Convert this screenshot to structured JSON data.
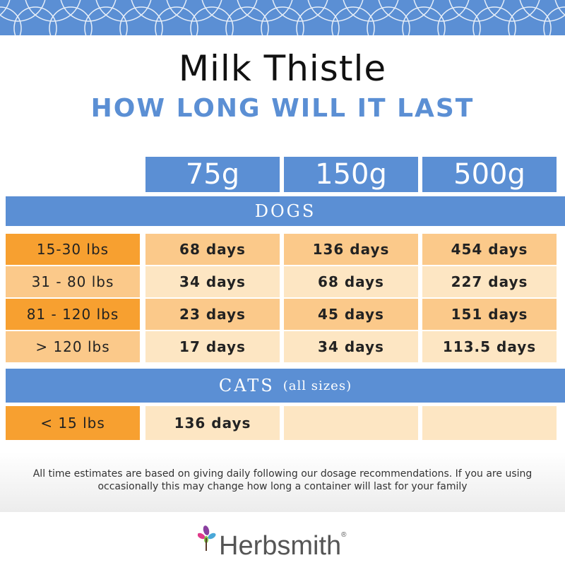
{
  "product_title": "Milk Thistle",
  "subtitle": "HOW LONG WILL IT LAST",
  "columns": [
    "75g",
    "150g",
    "500g"
  ],
  "dogs": {
    "heading": "DOGS",
    "rows": [
      {
        "label": "15-30 lbs",
        "values": [
          "68 days",
          "136 days",
          "454 days"
        ]
      },
      {
        "label": "31 - 80 lbs",
        "values": [
          "34 days",
          "68 days",
          "227 days"
        ]
      },
      {
        "label": "81 - 120 lbs",
        "values": [
          "23 days",
          "45 days",
          "151 days"
        ]
      },
      {
        "label": "> 120 lbs",
        "values": [
          "17 days",
          "34 days",
          "113.5 days"
        ]
      }
    ]
  },
  "cats": {
    "heading": "CATS",
    "note": "(all sizes)",
    "rows": [
      {
        "label": "< 15 lbs",
        "values": [
          "136 days",
          "",
          ""
        ]
      }
    ]
  },
  "disclaimer": "All time estimates are based on giving daily following our dosage recommendations. If you are using occasionally this may change how long a container will last for your family",
  "brand": {
    "name": "Herbsmith",
    "registered": "®"
  },
  "colors": {
    "blue": "#5b8fd4",
    "orange_dark": "#f7a030",
    "orange_mid": "#fbc98a",
    "cream": "#fde6c3",
    "cream_light": "#fdeed6"
  }
}
